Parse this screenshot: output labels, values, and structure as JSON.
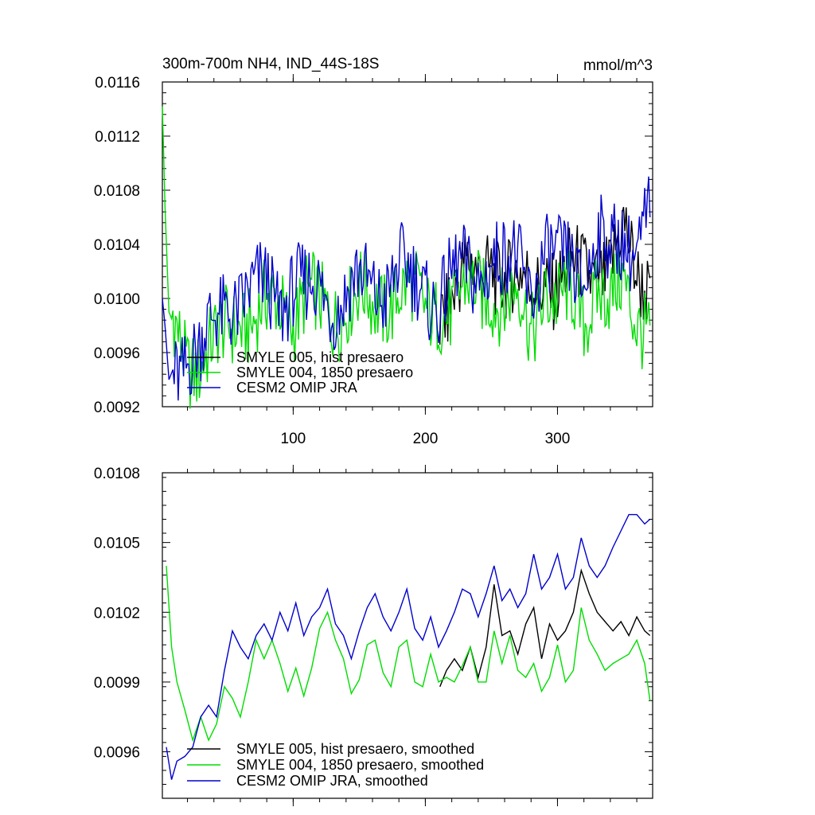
{
  "figure": {
    "title_left": "300m-700m NH4, IND_44S-18S",
    "title_right": "mmol/m^3"
  },
  "chart_data": [
    {
      "type": "line",
      "title": "300m-700m NH4, IND_44S-18S",
      "units": "mmol/m^3",
      "xlim": [
        1,
        372
      ],
      "ylim": [
        0.0092,
        0.0116
      ],
      "xticks": [
        100,
        200,
        300
      ],
      "yticks": [
        "0.0092",
        "0.0096",
        "0.0100",
        "0.0104",
        "0.0108",
        "0.0112",
        "0.0116"
      ],
      "legend_position": "bottom-left",
      "grid": false,
      "series": [
        {
          "name": "SMYLE 005, hist presaero",
          "color": "#000000",
          "x_start": 211,
          "points": [
            [
              211,
              0.0099
            ],
            [
              220,
              0.0101
            ],
            [
              230,
              0.0102
            ],
            [
              240,
              0.0101
            ],
            [
              250,
              0.0103
            ],
            [
              260,
              0.0102
            ],
            [
              270,
              0.0101
            ],
            [
              280,
              0.01005
            ],
            [
              290,
              0.0102
            ],
            [
              300,
              0.0101
            ],
            [
              310,
              0.01015
            ],
            [
              320,
              0.0102
            ],
            [
              330,
              0.01025
            ],
            [
              340,
              0.0102
            ],
            [
              350,
              0.01045
            ],
            [
              360,
              0.0102
            ],
            [
              370,
              0.01015
            ]
          ]
        },
        {
          "name": "SMYLE 004, 1850 presaero",
          "color": "#00dd00",
          "points": [
            [
              1,
              0.01142
            ],
            [
              3,
              0.01068
            ],
            [
              6,
              0.0099
            ],
            [
              10,
              0.0098
            ],
            [
              15,
              0.0097
            ],
            [
              20,
              0.0096
            ],
            [
              30,
              0.0095
            ],
            [
              40,
              0.0096
            ],
            [
              50,
              0.0098
            ],
            [
              60,
              0.0099
            ],
            [
              70,
              0.0098
            ],
            [
              80,
              0.0099
            ],
            [
              90,
              0.01
            ],
            [
              100,
              0.0099
            ],
            [
              110,
              0.01
            ],
            [
              120,
              0.0099
            ],
            [
              130,
              0.0099
            ],
            [
              140,
              0.01
            ],
            [
              150,
              0.01
            ],
            [
              160,
              0.0099
            ],
            [
              170,
              0.01
            ],
            [
              180,
              0.0101
            ],
            [
              190,
              0.01
            ],
            [
              200,
              0.0099
            ],
            [
              210,
              0.01
            ],
            [
              220,
              0.0099
            ],
            [
              230,
              0.01
            ],
            [
              240,
              0.0101
            ],
            [
              250,
              0.0101
            ],
            [
              260,
              0.0099
            ],
            [
              270,
              0.01
            ],
            [
              280,
              0.0098
            ],
            [
              290,
              0.0101
            ],
            [
              300,
              0.0099
            ],
            [
              310,
              0.01
            ],
            [
              320,
              0.0099
            ],
            [
              330,
              0.0101
            ],
            [
              340,
              0.0099
            ],
            [
              350,
              0.0101
            ],
            [
              360,
              0.0099
            ],
            [
              370,
              0.0098
            ]
          ]
        },
        {
          "name": "CESM2 OMIP JRA",
          "color": "#0000cc",
          "points": [
            [
              1,
              0.01
            ],
            [
              3,
              0.0098
            ],
            [
              6,
              0.0094
            ],
            [
              10,
              0.0095
            ],
            [
              20,
              0.0096
            ],
            [
              30,
              0.0096
            ],
            [
              40,
              0.0098
            ],
            [
              50,
              0.01
            ],
            [
              60,
              0.01
            ],
            [
              70,
              0.01
            ],
            [
              80,
              0.0101
            ],
            [
              90,
              0.01
            ],
            [
              100,
              0.0101
            ],
            [
              110,
              0.01
            ],
            [
              120,
              0.0101
            ],
            [
              130,
              0.01
            ],
            [
              140,
              0.01
            ],
            [
              150,
              0.0101
            ],
            [
              160,
              0.0101
            ],
            [
              170,
              0.0101
            ],
            [
              180,
              0.0102
            ],
            [
              190,
              0.0101
            ],
            [
              200,
              0.0101
            ],
            [
              210,
              0.01
            ],
            [
              220,
              0.0101
            ],
            [
              230,
              0.0102
            ],
            [
              240,
              0.0102
            ],
            [
              250,
              0.0103
            ],
            [
              260,
              0.0102
            ],
            [
              270,
              0.0103
            ],
            [
              280,
              0.0101
            ],
            [
              290,
              0.0103
            ],
            [
              300,
              0.0102
            ],
            [
              310,
              0.0103
            ],
            [
              320,
              0.0102
            ],
            [
              330,
              0.0104
            ],
            [
              340,
              0.0103
            ],
            [
              350,
              0.0105
            ],
            [
              360,
              0.0104
            ],
            [
              370,
              0.0106
            ]
          ]
        }
      ]
    },
    {
      "type": "line",
      "xlim": [
        1,
        372
      ],
      "ylim": [
        0.0094,
        0.0108
      ],
      "xticks": [
        100,
        200,
        300
      ],
      "yticks": [
        "0.0096",
        "0.0099",
        "0.0102",
        "0.0105",
        "0.0108"
      ],
      "legend_position": "bottom-left",
      "grid": false,
      "series": [
        {
          "name": "SMYLE 005, hist presaero, smoothed",
          "color": "#000000",
          "points": [
            [
              211,
              0.00988
            ],
            [
              216,
              0.00995
            ],
            [
              222,
              0.01
            ],
            [
              228,
              0.00995
            ],
            [
              234,
              0.01005
            ],
            [
              240,
              0.00992
            ],
            [
              246,
              0.01005
            ],
            [
              252,
              0.01032
            ],
            [
              258,
              0.0101
            ],
            [
              264,
              0.01012
            ],
            [
              270,
              0.01002
            ],
            [
              276,
              0.01015
            ],
            [
              282,
              0.01022
            ],
            [
              288,
              0.01
            ],
            [
              294,
              0.01015
            ],
            [
              300,
              0.01008
            ],
            [
              306,
              0.01012
            ],
            [
              312,
              0.0102
            ],
            [
              318,
              0.01038
            ],
            [
              324,
              0.01028
            ],
            [
              330,
              0.0102
            ],
            [
              336,
              0.01016
            ],
            [
              342,
              0.01012
            ],
            [
              348,
              0.01016
            ],
            [
              354,
              0.0101
            ],
            [
              360,
              0.01018
            ],
            [
              366,
              0.01012
            ],
            [
              370,
              0.0101
            ]
          ]
        },
        {
          "name": "SMYLE 004, 1850 presaero, smoothed",
          "color": "#00dd00",
          "points": [
            [
              4,
              0.0104
            ],
            [
              8,
              0.01005
            ],
            [
              12,
              0.0099
            ],
            [
              18,
              0.00978
            ],
            [
              24,
              0.00965
            ],
            [
              30,
              0.00975
            ],
            [
              36,
              0.00965
            ],
            [
              42,
              0.00972
            ],
            [
              48,
              0.00988
            ],
            [
              54,
              0.00983
            ],
            [
              60,
              0.00975
            ],
            [
              66,
              0.0099
            ],
            [
              72,
              0.01008
            ],
            [
              78,
              0.01
            ],
            [
              84,
              0.01008
            ],
            [
              90,
              0.00998
            ],
            [
              96,
              0.00986
            ],
            [
              102,
              0.00996
            ],
            [
              108,
              0.00984
            ],
            [
              114,
              0.00996
            ],
            [
              120,
              0.01013
            ],
            [
              126,
              0.0102
            ],
            [
              132,
              0.01008
            ],
            [
              138,
              0.01
            ],
            [
              144,
              0.00985
            ],
            [
              150,
              0.00991
            ],
            [
              156,
              0.01006
            ],
            [
              162,
              0.01008
            ],
            [
              168,
              0.00994
            ],
            [
              174,
              0.00988
            ],
            [
              180,
              0.01005
            ],
            [
              186,
              0.01008
            ],
            [
              192,
              0.0099
            ],
            [
              198,
              0.00988
            ],
            [
              204,
              0.01002
            ],
            [
              210,
              0.0099
            ],
            [
              216,
              0.00992
            ],
            [
              222,
              0.0099
            ],
            [
              228,
              0.00997
            ],
            [
              234,
              0.01005
            ],
            [
              240,
              0.0099
            ],
            [
              246,
              0.0099
            ],
            [
              252,
              0.01012
            ],
            [
              258,
              0.00998
            ],
            [
              264,
              0.0101
            ],
            [
              270,
              0.00995
            ],
            [
              276,
              0.00992
            ],
            [
              282,
              0.00998
            ],
            [
              288,
              0.00986
            ],
            [
              294,
              0.00992
            ],
            [
              300,
              0.01006
            ],
            [
              306,
              0.0099
            ],
            [
              312,
              0.00995
            ],
            [
              318,
              0.01022
            ],
            [
              324,
              0.01008
            ],
            [
              330,
              0.01002
            ],
            [
              336,
              0.00995
            ],
            [
              342,
              0.00998
            ],
            [
              348,
              0.01
            ],
            [
              354,
              0.01002
            ],
            [
              360,
              0.01008
            ],
            [
              366,
              0.00998
            ],
            [
              370,
              0.00982
            ]
          ]
        },
        {
          "name": "CESM2 OMIP JRA, smoothed",
          "color": "#0000cc",
          "points": [
            [
              4,
              0.00962
            ],
            [
              8,
              0.00948
            ],
            [
              12,
              0.00956
            ],
            [
              18,
              0.00958
            ],
            [
              24,
              0.00962
            ],
            [
              30,
              0.00975
            ],
            [
              36,
              0.0098
            ],
            [
              42,
              0.00975
            ],
            [
              48,
              0.00995
            ],
            [
              54,
              0.01012
            ],
            [
              60,
              0.01005
            ],
            [
              66,
              0.01
            ],
            [
              72,
              0.0101
            ],
            [
              78,
              0.01015
            ],
            [
              84,
              0.01008
            ],
            [
              90,
              0.0102
            ],
            [
              96,
              0.01012
            ],
            [
              102,
              0.01024
            ],
            [
              108,
              0.0101
            ],
            [
              114,
              0.01018
            ],
            [
              120,
              0.01022
            ],
            [
              126,
              0.0103
            ],
            [
              132,
              0.01015
            ],
            [
              138,
              0.0101
            ],
            [
              144,
              0.01
            ],
            [
              150,
              0.01012
            ],
            [
              156,
              0.01022
            ],
            [
              162,
              0.01028
            ],
            [
              168,
              0.01018
            ],
            [
              174,
              0.01012
            ],
            [
              180,
              0.0102
            ],
            [
              186,
              0.0103
            ],
            [
              192,
              0.01013
            ],
            [
              198,
              0.01008
            ],
            [
              204,
              0.01018
            ],
            [
              210,
              0.01005
            ],
            [
              216,
              0.01012
            ],
            [
              222,
              0.0102
            ],
            [
              228,
              0.0103
            ],
            [
              234,
              0.01028
            ],
            [
              240,
              0.01018
            ],
            [
              246,
              0.01028
            ],
            [
              252,
              0.0104
            ],
            [
              258,
              0.01025
            ],
            [
              264,
              0.0103
            ],
            [
              270,
              0.01022
            ],
            [
              276,
              0.01028
            ],
            [
              282,
              0.01045
            ],
            [
              288,
              0.0103
            ],
            [
              294,
              0.01035
            ],
            [
              300,
              0.01045
            ],
            [
              306,
              0.0103
            ],
            [
              312,
              0.01035
            ],
            [
              318,
              0.01052
            ],
            [
              324,
              0.0104
            ],
            [
              330,
              0.01035
            ],
            [
              336,
              0.0104
            ],
            [
              342,
              0.01048
            ],
            [
              348,
              0.01055
            ],
            [
              354,
              0.01062
            ],
            [
              360,
              0.01062
            ],
            [
              366,
              0.01058
            ],
            [
              370,
              0.0106
            ]
          ]
        }
      ]
    }
  ]
}
